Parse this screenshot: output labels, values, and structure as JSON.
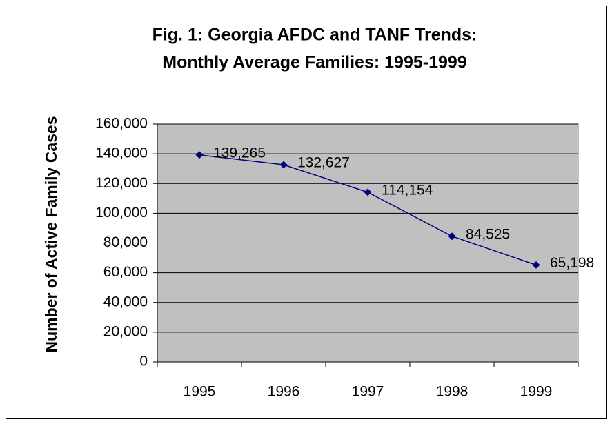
{
  "chart_data": {
    "type": "line",
    "title": [
      "Fig. 1: Georgia AFDC and TANF Trends:",
      "Monthly Average Families: 1995-1999"
    ],
    "y_label": "Number of Active Family Cases",
    "categories": [
      "1995",
      "1996",
      "1997",
      "1998",
      "1999"
    ],
    "values": [
      139265,
      132627,
      114154,
      84525,
      65198
    ],
    "value_labels": [
      "139,265",
      "132,627",
      "114,154",
      "84,525",
      "65,198"
    ],
    "color": "#000080",
    "ylim": [
      0,
      160000
    ],
    "yticks": [
      0,
      {
        "value": 20000,
        "label": "20,000"
      },
      {
        "value": 40000,
        "label": "40,000"
      },
      {
        "value": 60000,
        "label": "60,000"
      },
      {
        "value": 80000,
        "label": "80,000"
      },
      {
        "value": 100000,
        "label": "100,000"
      },
      {
        "value": 120000,
        "label": "120,000"
      },
      {
        "value": 140000,
        "label": "140,000"
      },
      {
        "value": 160000,
        "label": "160,000"
      }
    ],
    "grid": true
  }
}
